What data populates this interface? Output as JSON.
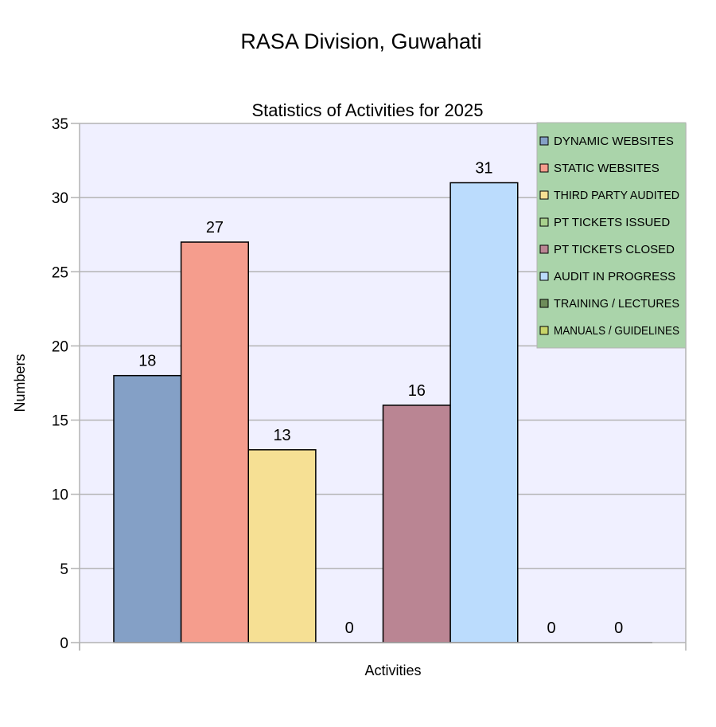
{
  "page_title": "RASA Division, Guwahati",
  "chart_data": {
    "type": "bar",
    "title": "Statistics of Activities for 2025",
    "xlabel": "Activities",
    "ylabel": "Numbers",
    "ylim": [
      0,
      35
    ],
    "yticks": [
      0,
      5,
      10,
      15,
      20,
      25,
      30,
      35
    ],
    "grid": true,
    "legend_position": "top-right",
    "plot_background": "#f0f0ff",
    "legend_background": "#aad4aa",
    "series": [
      {
        "name": "DYNAMIC WEBSITES",
        "value": 18,
        "color": "#84a0c6"
      },
      {
        "name": "STATIC WEBSITES",
        "value": 27,
        "color": "#f59d8d"
      },
      {
        "name": "THIRD PARTY AUDITED",
        "value": 13,
        "color": "#f6e094"
      },
      {
        "name": "PT TICKETS ISSUED",
        "value": 0,
        "color": "#a8d08d"
      },
      {
        "name": "PT TICKETS CLOSED",
        "value": 16,
        "color": "#ba8593"
      },
      {
        "name": "AUDIT IN PROGRESS",
        "value": 31,
        "color": "#bbdcfd"
      },
      {
        "name": "TRAINING / LECTURES",
        "value": 0,
        "color": "#6e8c5a"
      },
      {
        "name": "MANUALS / GUIDELINES",
        "value": 0,
        "color": "#c8d46a"
      }
    ]
  }
}
